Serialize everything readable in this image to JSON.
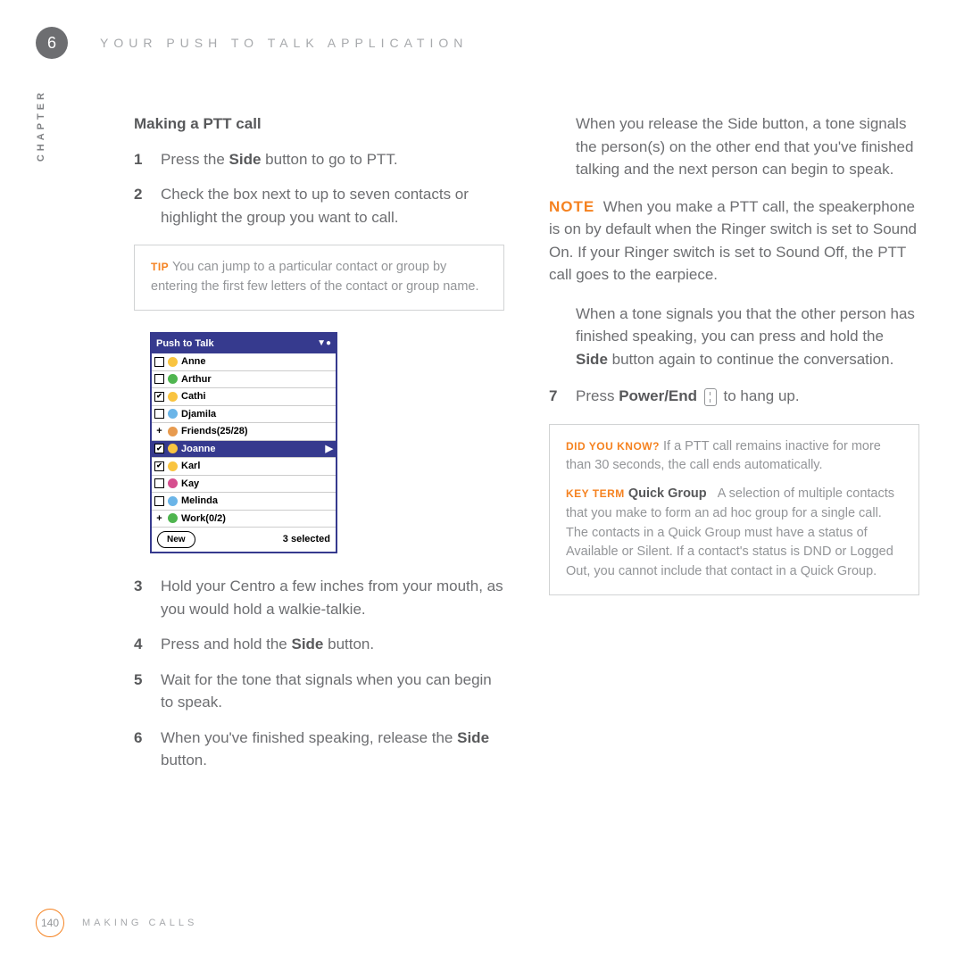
{
  "header": {
    "chapter_num": "6",
    "title": "YOUR PUSH TO TALK APPLICATION"
  },
  "chapter_label": "CHAPTER",
  "left": {
    "section_title": "Making a PTT call",
    "steps": {
      "s1": {
        "n": "1",
        "pre": "Press the ",
        "bold": "Side",
        "post": " button to go to PTT."
      },
      "s2": {
        "n": "2",
        "text": "Check the box next to up to seven contacts or highlight the group you want to call."
      },
      "s3": {
        "n": "3",
        "text": "Hold your Centro a few inches from your mouth, as you would hold a walkie-talkie."
      },
      "s4": {
        "n": "4",
        "pre": "Press and hold the ",
        "bold": "Side",
        "post": " button."
      },
      "s5": {
        "n": "5",
        "text": "Wait for the tone that signals when you can begin to speak."
      },
      "s6": {
        "n": "6",
        "pre": "When you've finished speaking, release the ",
        "bold": "Side",
        "post": " button."
      }
    },
    "tip": {
      "label": "TIP",
      "text": " You can jump to a particular contact or group by entering the first few letters of the contact or group name."
    }
  },
  "screenshot": {
    "title": "Push to Talk",
    "rows": [
      {
        "checked": false,
        "plus": false,
        "color": "#f9c440",
        "name": "Anne",
        "selected": false
      },
      {
        "checked": false,
        "plus": false,
        "color": "#4fb54f",
        "name": "Arthur",
        "selected": false
      },
      {
        "checked": true,
        "plus": false,
        "color": "#f9c440",
        "name": "Cathi",
        "selected": false
      },
      {
        "checked": false,
        "plus": false,
        "color": "#6bb5e8",
        "name": "Djamila",
        "selected": false
      },
      {
        "checked": false,
        "plus": true,
        "color": "#e89b4f",
        "name": "Friends(25/28)",
        "selected": false
      },
      {
        "checked": true,
        "plus": false,
        "color": "#f9c440",
        "name": "Joanne",
        "selected": true
      },
      {
        "checked": true,
        "plus": false,
        "color": "#f9c440",
        "name": "Karl",
        "selected": false
      },
      {
        "checked": false,
        "plus": false,
        "color": "#d64f8f",
        "name": "Kay",
        "selected": false
      },
      {
        "checked": false,
        "plus": false,
        "color": "#6bb5e8",
        "name": "Melinda",
        "selected": false
      },
      {
        "checked": false,
        "plus": true,
        "color": "#4fb54f",
        "name": "Work(0/2)",
        "selected": false
      }
    ],
    "new_btn": "New",
    "selected_count": "3 selected"
  },
  "right": {
    "cont6": "When you release the Side button, a tone signals the person(s) on the other end that you've finished talking and the next person can begin to speak.",
    "note": {
      "label": "NOTE",
      "text": "When you make a PTT call, the speakerphone is on by default when the Ringer switch is set to Sound On. If your Ringer switch is set to Sound Off, the PTT call goes to the earpiece."
    },
    "cont_tone": {
      "pre": "When a tone signals you that the other person has finished speaking, you can press and hold the ",
      "bold": "Side",
      "post": " button again to continue the conversation."
    },
    "s7": {
      "n": "7",
      "pre": "Press ",
      "bold": "Power/End",
      "post": " to hang up."
    },
    "dyk": {
      "label": "DID YOU KNOW?",
      "text": " If a PTT call remains inactive for more than 30 seconds, the call ends automatically."
    },
    "keyterm": {
      "label": "KEY TERM",
      "term": "Quick Group",
      "text": "A selection of multiple contacts that you make to form an ad hoc group for a single call. The contacts in a Quick Group must have a status of Available or Silent. If a contact's status is DND or Logged Out, you cannot include that contact in a Quick Group."
    }
  },
  "footer": {
    "page": "140",
    "text": "MAKING CALLS"
  }
}
